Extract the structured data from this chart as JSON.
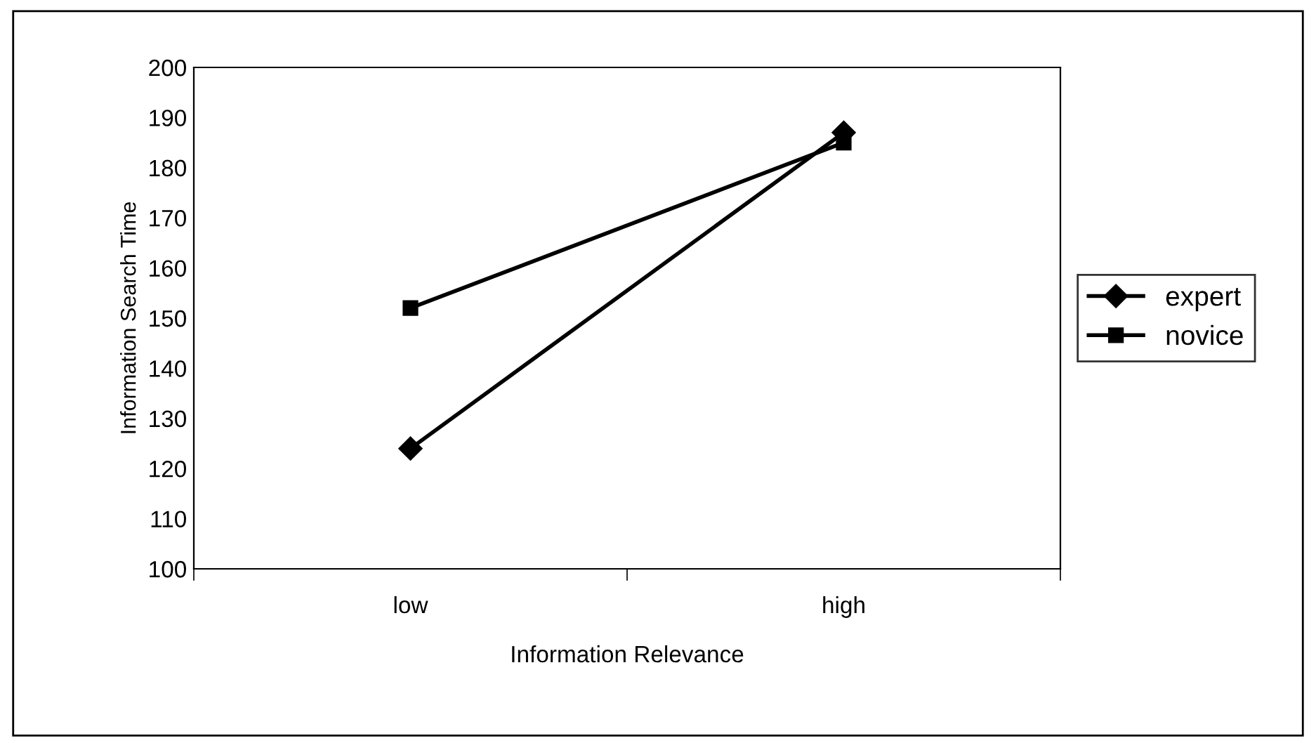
{
  "chart_data": {
    "type": "line",
    "xlabel": "Information Relevance",
    "ylabel": "Information Search Time",
    "categories": [
      "low",
      "high"
    ],
    "series": [
      {
        "name": "expert",
        "color": "#000000",
        "values": [
          124,
          187
        ],
        "marker": "diamond"
      },
      {
        "name": "novice",
        "color": "#000000",
        "values": [
          152,
          185
        ],
        "marker": "square"
      }
    ],
    "ylim": [
      100,
      200
    ],
    "yticks": [
      100,
      110,
      120,
      130,
      140,
      150,
      160,
      170,
      180,
      190,
      200
    ],
    "grid": false,
    "legend": "right",
    "line_style": "solid"
  }
}
